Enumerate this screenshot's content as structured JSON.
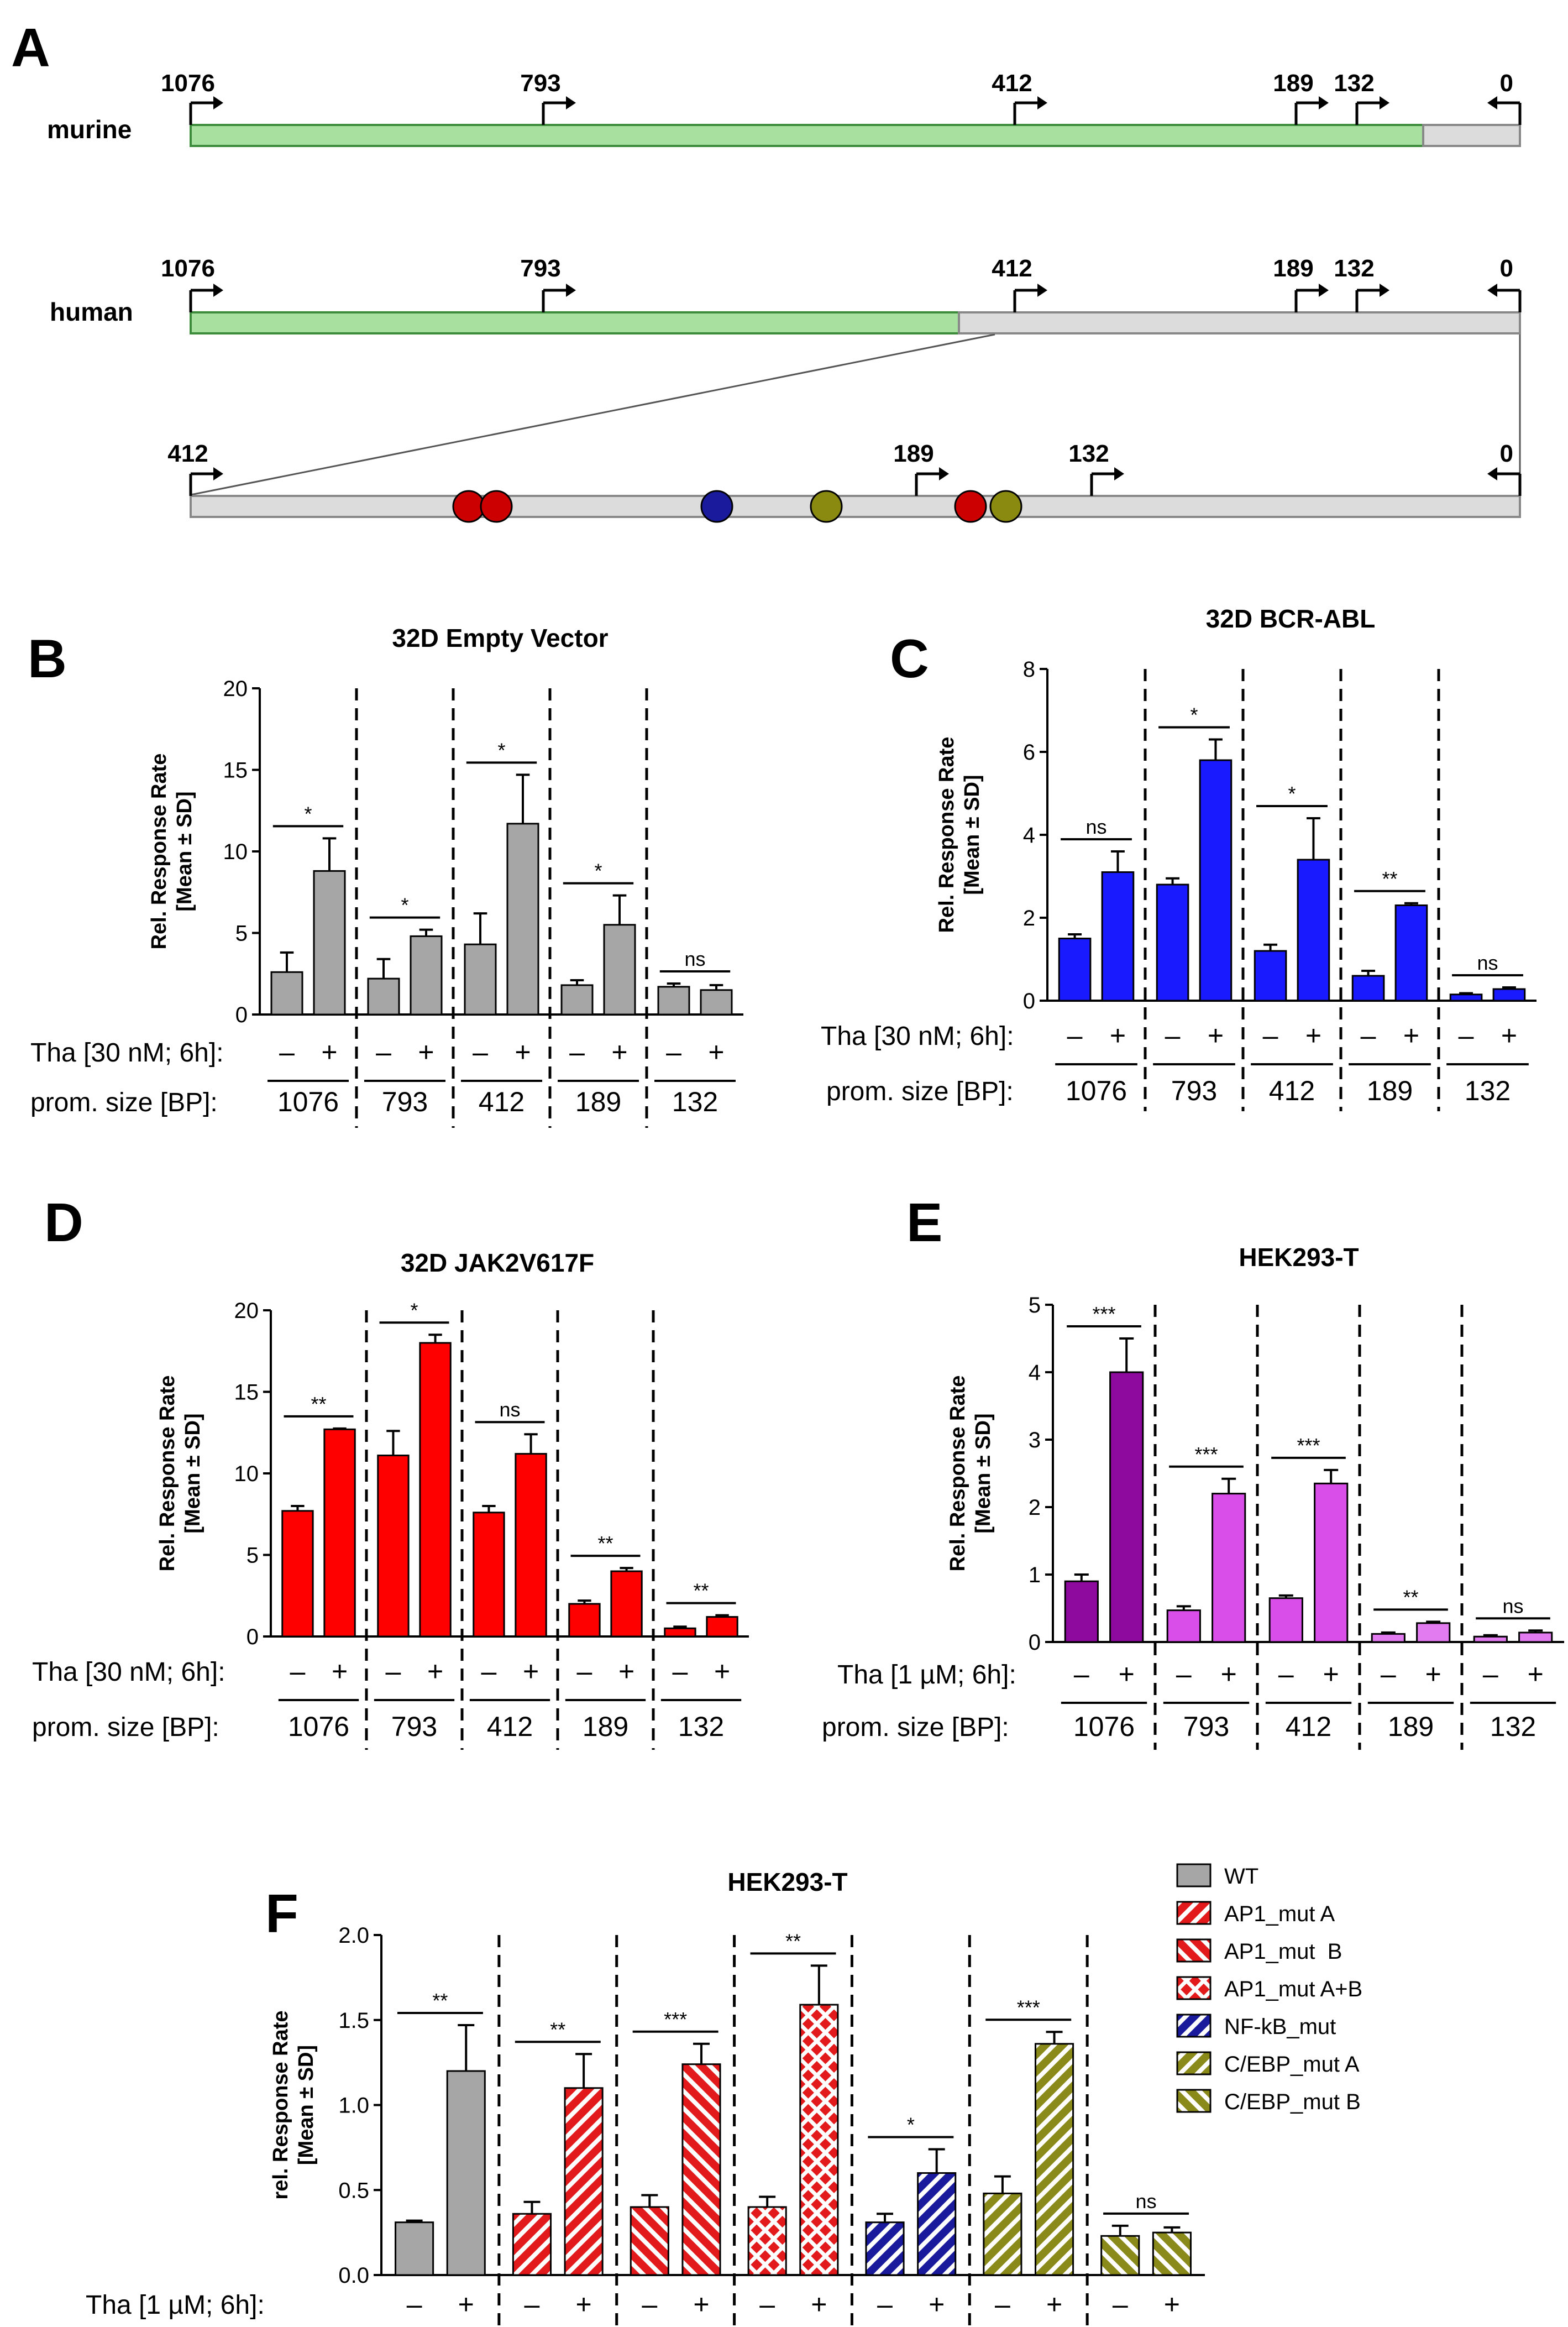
{
  "figure": {
    "panel_letters": [
      "A",
      "B",
      "C",
      "D",
      "E",
      "F"
    ],
    "promoter_schematic": {
      "rows": [
        {
          "label": "murine",
          "positions": [
            "1076",
            "793",
            "412",
            "189",
            "132",
            "0"
          ]
        },
        {
          "label": "human",
          "positions": [
            "1076",
            "793",
            "412",
            "189",
            "132",
            "0"
          ]
        },
        {
          "label": "",
          "positions": [
            "412",
            "189",
            "132",
            "0"
          ]
        }
      ]
    },
    "colors": {
      "wt": "#a6a6a6",
      "ap1": "#e31a1c",
      "nfkb": "#1a1a9c",
      "cebp": "#8a8a1a",
      "red": "#ff0000",
      "blue": "#1a1aff",
      "purple1": "#8e0a9e",
      "purple2": "#d94ee8",
      "purple3": "#e27af0",
      "green": "#a8e0a0",
      "lightgray": "#dcdcdc"
    }
  },
  "chart_data": [
    {
      "type": "bar",
      "title": "32D Empty Vector",
      "ylabel_line1": "Rel. Response Rate",
      "ylabel_line2": "[Mean ± SD]",
      "ylim": [
        0,
        20
      ],
      "yticks": [
        "0",
        "5",
        "10",
        "15",
        "20"
      ],
      "treatment_label": "Tha [30 nM; 6h]:",
      "size_label": "prom. size [BP]:",
      "groups": [
        "1076",
        "793",
        "412",
        "189",
        "132"
      ],
      "minus_plus": [
        "–",
        "+"
      ],
      "values_minus": [
        2.6,
        2.2,
        4.3,
        1.8,
        1.7
      ],
      "values_plus": [
        8.8,
        4.8,
        11.7,
        5.5,
        1.5
      ],
      "errors_minus": [
        1.2,
        1.2,
        1.9,
        0.3,
        0.2
      ],
      "errors_plus": [
        2.0,
        0.4,
        3.0,
        1.8,
        0.3
      ],
      "significance": [
        "*",
        "*",
        "*",
        "*",
        "ns"
      ]
    },
    {
      "type": "bar",
      "title": "32D BCR-ABL",
      "ylabel_line1": "Rel. Response Rate",
      "ylabel_line2": "[Mean ± SD]",
      "ylim": [
        0,
        8
      ],
      "yticks": [
        "0",
        "2",
        "4",
        "6",
        "8"
      ],
      "treatment_label": "Tha [30 nM; 6h]:",
      "size_label": "prom. size [BP]:",
      "groups": [
        "1076",
        "793",
        "412",
        "189",
        "132"
      ],
      "minus_plus": [
        "–",
        "+"
      ],
      "values_minus": [
        1.5,
        2.8,
        1.2,
        0.6,
        0.15
      ],
      "values_plus": [
        3.1,
        5.8,
        3.4,
        2.3,
        0.28
      ],
      "errors_minus": [
        0.1,
        0.15,
        0.15,
        0.12,
        0.03
      ],
      "errors_plus": [
        0.5,
        0.5,
        1.0,
        0.05,
        0.04
      ],
      "significance": [
        "ns",
        "*",
        "*",
        "**",
        "ns"
      ]
    },
    {
      "type": "bar",
      "title": "32D JAK2V617F",
      "ylabel_line1": "Rel. Response Rate",
      "ylabel_line2": "[Mean ± SD]",
      "ylim": [
        0,
        20
      ],
      "yticks": [
        "0",
        "5",
        "10",
        "15",
        "20"
      ],
      "treatment_label": "Tha [30 nM; 6h]:",
      "size_label": "prom. size [BP]:",
      "groups": [
        "1076",
        "793",
        "412",
        "189",
        "132"
      ],
      "minus_plus": [
        "–",
        "+"
      ],
      "values_minus": [
        7.7,
        11.1,
        7.6,
        2.0,
        0.5
      ],
      "values_plus": [
        12.7,
        18.0,
        11.2,
        4.0,
        1.2
      ],
      "errors_minus": [
        0.3,
        1.5,
        0.4,
        0.2,
        0.1
      ],
      "errors_plus": [
        0.05,
        0.5,
        1.2,
        0.2,
        0.1
      ],
      "significance": [
        "**",
        "*",
        "ns",
        "**",
        "**"
      ]
    },
    {
      "type": "bar",
      "title": "HEK293-T",
      "ylabel_line1": "Rel. Response Rate",
      "ylabel_line2": "[Mean ± SD]",
      "ylim": [
        0,
        5
      ],
      "yticks": [
        "0",
        "1",
        "2",
        "3",
        "4",
        "5"
      ],
      "treatment_label": "Tha [1 µM; 6h]:",
      "size_label": "prom. size [BP]:",
      "groups": [
        "1076",
        "793",
        "412",
        "189",
        "132"
      ],
      "minus_plus": [
        "–",
        "+"
      ],
      "values_minus": [
        0.9,
        0.47,
        0.65,
        0.12,
        0.08
      ],
      "values_plus": [
        4.0,
        2.2,
        2.35,
        0.28,
        0.14
      ],
      "errors_minus": [
        0.1,
        0.06,
        0.04,
        0.02,
        0.02
      ],
      "errors_plus": [
        0.5,
        0.22,
        0.2,
        0.02,
        0.03
      ],
      "significance": [
        "***",
        "***",
        "***",
        "**",
        "ns"
      ]
    },
    {
      "type": "bar",
      "title": "HEK293-T",
      "ylabel_line1": "rel. Response Rate",
      "ylabel_line2": "[Mean ± SD]",
      "ylim": [
        0,
        2.0
      ],
      "yticks": [
        "0.0",
        "0.5",
        "1.0",
        "1.5",
        "2.0"
      ],
      "treatment_label": "Tha [1 µM; 6h]:",
      "minus_plus": [
        "–",
        "+"
      ],
      "series": [
        "WT",
        "AP1_mut A",
        "AP1_mut  B",
        "AP1_mut A+B",
        "NF-kB_mut",
        "C/EBP_mut A",
        "C/EBP_mut B"
      ],
      "values_minus": [
        0.31,
        0.36,
        0.4,
        0.4,
        0.31,
        0.48,
        0.23
      ],
      "values_plus": [
        1.2,
        1.1,
        1.24,
        1.59,
        0.6,
        1.36,
        0.25
      ],
      "errors_minus": [
        0.01,
        0.07,
        0.07,
        0.06,
        0.05,
        0.1,
        0.06
      ],
      "errors_plus": [
        0.27,
        0.2,
        0.12,
        0.23,
        0.14,
        0.07,
        0.03
      ],
      "significance": [
        "**",
        "**",
        "***",
        "**",
        "*",
        "***",
        "ns"
      ]
    }
  ]
}
